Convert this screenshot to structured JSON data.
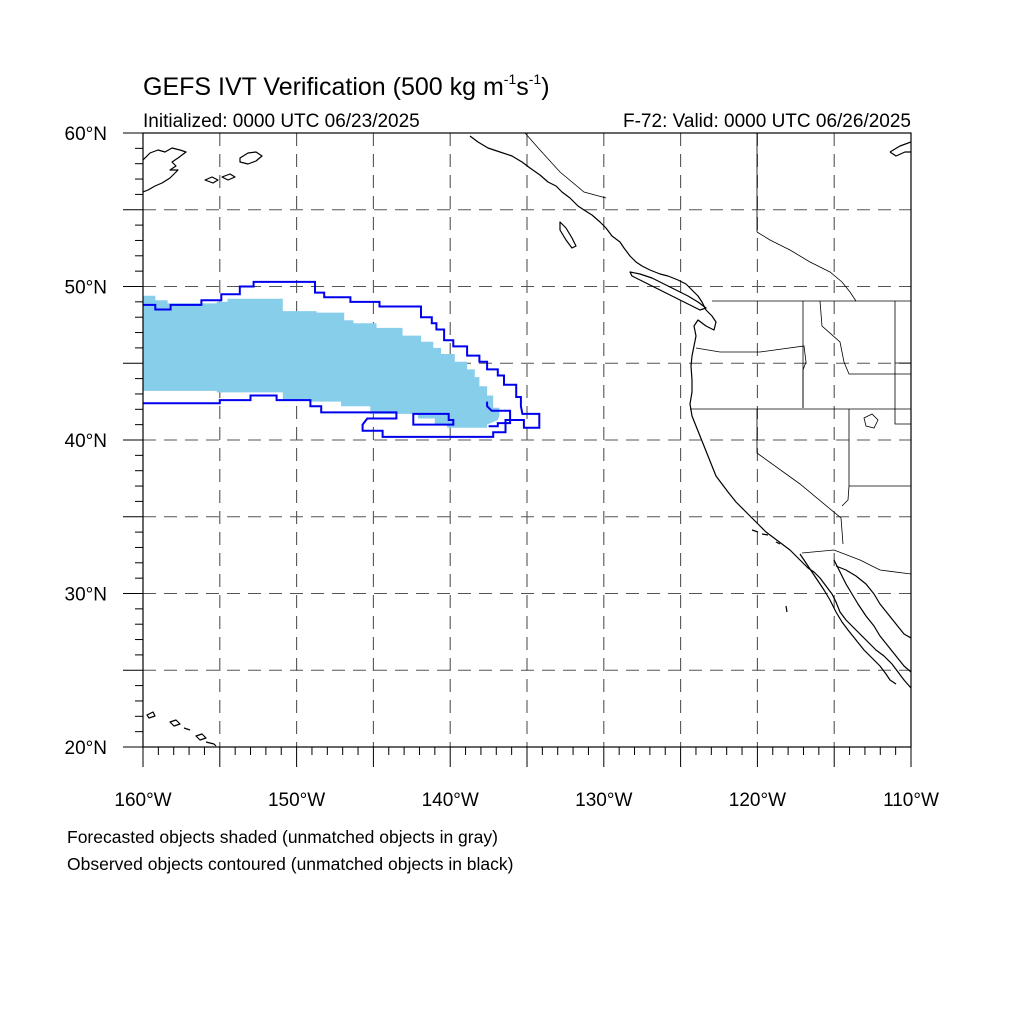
{
  "title": {
    "prefix": "GEFS IVT Verification (500 kg m",
    "sup1": "-1",
    "mid": "s",
    "sup2": "-1",
    "suffix": ")"
  },
  "subtitle_left": "Initialized: 0000 UTC 06/23/2025",
  "subtitle_right": "F-72: Valid: 0000 UTC 06/26/2025",
  "captions": [
    "Forecasted objects shaded (unmatched objects in gray)",
    "Observed objects contoured (unmatched objects in black)"
  ],
  "map": {
    "projection": "cylindrical-equidistant",
    "lon_range": [
      -160,
      -110
    ],
    "lat_range": [
      20,
      60
    ],
    "major_lon_ticks": [
      -160,
      -150,
      -140,
      -130,
      -120,
      -110
    ],
    "major_lon_labels": [
      "160°W",
      "150°W",
      "140°W",
      "130°W",
      "120°W",
      "110°W"
    ],
    "major_lat_ticks": [
      20,
      30,
      40,
      50,
      60
    ],
    "major_lat_labels": [
      "20°N",
      "30°N",
      "40°N",
      "50°N",
      "60°N"
    ],
    "gridlines_lon": [
      -155,
      -150,
      -145,
      -140,
      -135,
      -130,
      -125,
      -120,
      -115
    ],
    "gridlines_lat": [
      25,
      30,
      35,
      40,
      45,
      50,
      55
    ],
    "colors": {
      "forecast_matched_fill": "#87ceeb",
      "forecast_unmatched_fill": "#a0a0a0",
      "observed_matched_contour": "#0000ee",
      "observed_unmatched_contour": "#000000",
      "coastline": "#000000",
      "grid": "#555555"
    },
    "forecast_object": {
      "status": "matched",
      "polygon_lonlat": [
        [
          -160,
          49.4
        ],
        [
          -159.2,
          49.4
        ],
        [
          -159.2,
          49.1
        ],
        [
          -158.4,
          49.1
        ],
        [
          -158.4,
          48.9
        ],
        [
          -155.2,
          48.9
        ],
        [
          -155.2,
          49.0
        ],
        [
          -154.5,
          49.0
        ],
        [
          -154.5,
          49.2
        ],
        [
          -150.9,
          49.2
        ],
        [
          -150.9,
          48.4
        ],
        [
          -148.7,
          48.4
        ],
        [
          -148.7,
          48.3
        ],
        [
          -146.9,
          48.3
        ],
        [
          -146.9,
          47.8
        ],
        [
          -146.3,
          47.8
        ],
        [
          -146.3,
          47.6
        ],
        [
          -144.8,
          47.6
        ],
        [
          -144.8,
          47.3
        ],
        [
          -143.1,
          47.3
        ],
        [
          -143.1,
          46.8
        ],
        [
          -141.9,
          46.8
        ],
        [
          -141.9,
          46.4
        ],
        [
          -141.1,
          46.4
        ],
        [
          -141.1,
          46.0
        ],
        [
          -140.6,
          46.0
        ],
        [
          -140.6,
          45.6
        ],
        [
          -139.7,
          45.6
        ],
        [
          -139.7,
          45.1
        ],
        [
          -138.9,
          45.1
        ],
        [
          -138.9,
          44.6
        ],
        [
          -138.4,
          44.6
        ],
        [
          -138.4,
          44.1
        ],
        [
          -138.1,
          44.1
        ],
        [
          -138.1,
          43.5
        ],
        [
          -137.6,
          43.5
        ],
        [
          -137.6,
          42.9
        ],
        [
          -137.2,
          42.9
        ],
        [
          -137.2,
          42.1
        ],
        [
          -136.8,
          42.1
        ],
        [
          -136.8,
          41.6
        ],
        [
          -136.9,
          41.3
        ],
        [
          -137.6,
          41.0
        ],
        [
          -137.6,
          40.8
        ],
        [
          -140.2,
          40.8
        ],
        [
          -140.2,
          41.0
        ],
        [
          -141.0,
          41.0
        ],
        [
          -141.0,
          41.4
        ],
        [
          -142.1,
          41.4
        ],
        [
          -142.1,
          41.7
        ],
        [
          -145.2,
          41.7
        ],
        [
          -145.2,
          42.2
        ],
        [
          -147.1,
          42.2
        ],
        [
          -147.1,
          42.5
        ],
        [
          -149.2,
          42.5
        ],
        [
          -149.2,
          42.6
        ],
        [
          -150.9,
          42.6
        ],
        [
          -150.9,
          43.1
        ],
        [
          -155.2,
          43.1
        ],
        [
          -155.2,
          43.2
        ],
        [
          -160,
          43.2
        ]
      ]
    },
    "observed_object": {
      "status": "matched",
      "contour_lonlat": [
        [
          -160,
          48.8
        ],
        [
          -159.2,
          48.8
        ],
        [
          -159.2,
          48.5
        ],
        [
          -158.2,
          48.5
        ],
        [
          -158.2,
          48.8
        ],
        [
          -156.2,
          48.8
        ],
        [
          -156.2,
          49.1
        ],
        [
          -154.9,
          49.1
        ],
        [
          -154.9,
          49.5
        ],
        [
          -153.7,
          49.5
        ],
        [
          -153.7,
          50.0
        ],
        [
          -152.8,
          50.0
        ],
        [
          -152.8,
          50.3
        ],
        [
          -148.8,
          50.3
        ],
        [
          -148.8,
          49.6
        ],
        [
          -148.2,
          49.6
        ],
        [
          -148.2,
          49.3
        ],
        [
          -146.5,
          49.3
        ],
        [
          -146.5,
          49.0
        ],
        [
          -144.6,
          49.0
        ],
        [
          -144.6,
          48.7
        ],
        [
          -141.9,
          48.7
        ],
        [
          -141.9,
          48.0
        ],
        [
          -141.2,
          48.0
        ],
        [
          -141.2,
          47.6
        ],
        [
          -140.9,
          47.6
        ],
        [
          -140.9,
          47.2
        ],
        [
          -140.4,
          47.2
        ],
        [
          -140.4,
          46.5
        ],
        [
          -139.8,
          46.5
        ],
        [
          -139.8,
          46.1
        ],
        [
          -138.9,
          46.1
        ],
        [
          -138.9,
          45.5
        ],
        [
          -138.1,
          45.5
        ],
        [
          -138.1,
          45.1
        ],
        [
          -137.6,
          45.1
        ],
        [
          -137.6,
          44.6
        ],
        [
          -136.9,
          44.6
        ],
        [
          -136.9,
          44.2
        ],
        [
          -136.5,
          44.2
        ],
        [
          -136.5,
          43.6
        ],
        [
          -135.7,
          43.6
        ],
        [
          -135.7,
          42.8
        ],
        [
          -135.4,
          42.8
        ],
        [
          -135.4,
          42.2
        ],
        [
          -135.3,
          41.7
        ],
        [
          -134.2,
          41.7
        ],
        [
          -134.2,
          40.8
        ],
        [
          -135.2,
          40.8
        ],
        [
          -135.2,
          41.3
        ],
        [
          -136.4,
          41.3
        ],
        [
          -136.4,
          40.5
        ],
        [
          -137.2,
          40.5
        ],
        [
          -137.2,
          40.2
        ],
        [
          -144.4,
          40.2
        ],
        [
          -144.4,
          40.6
        ],
        [
          -145.7,
          40.6
        ],
        [
          -145.7,
          41.0
        ],
        [
          -145.4,
          41.4
        ],
        [
          -143.5,
          41.4
        ],
        [
          -143.5,
          41.8
        ],
        [
          -148.4,
          41.8
        ],
        [
          -148.4,
          42.2
        ],
        [
          -149.1,
          42.2
        ],
        [
          -149.1,
          42.6
        ],
        [
          -151.3,
          42.6
        ],
        [
          -151.3,
          42.9
        ],
        [
          -153.0,
          42.9
        ],
        [
          -153.0,
          42.6
        ],
        [
          -155.0,
          42.6
        ],
        [
          -155.0,
          42.4
        ],
        [
          -160,
          42.4
        ]
      ],
      "inner_ring_lonlat": [
        [
          -139.8,
          41.3
        ],
        [
          -140.1,
          41.3
        ],
        [
          -140.1,
          41.7
        ],
        [
          -142.4,
          41.7
        ],
        [
          -142.4,
          41.0
        ],
        [
          -139.8,
          41.0
        ]
      ],
      "right_tail_lonlat": [
        [
          -137.6,
          42.5
        ],
        [
          -137.6,
          42.2
        ],
        [
          -137.3,
          41.9
        ],
        [
          -136.1,
          41.9
        ],
        [
          -136.1,
          41.1
        ],
        [
          -136.9,
          41.1
        ],
        [
          -136.9,
          40.9
        ],
        [
          -137.5,
          40.9
        ]
      ]
    }
  }
}
